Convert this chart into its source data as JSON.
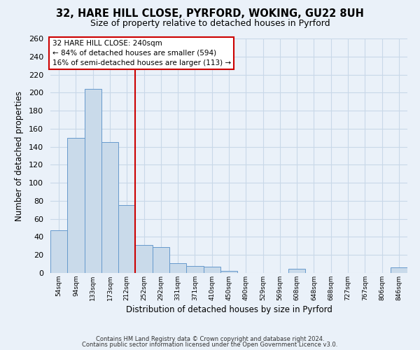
{
  "title1": "32, HARE HILL CLOSE, PYRFORD, WOKING, GU22 8UH",
  "title2": "Size of property relative to detached houses in Pyrford",
  "xlabel": "Distribution of detached houses by size in Pyrford",
  "ylabel": "Number of detached properties",
  "bin_labels": [
    "54sqm",
    "94sqm",
    "133sqm",
    "173sqm",
    "212sqm",
    "252sqm",
    "292sqm",
    "331sqm",
    "371sqm",
    "410sqm",
    "450sqm",
    "490sqm",
    "529sqm",
    "569sqm",
    "608sqm",
    "648sqm",
    "688sqm",
    "727sqm",
    "767sqm",
    "806sqm",
    "846sqm"
  ],
  "bar_values": [
    47,
    150,
    204,
    145,
    75,
    31,
    29,
    11,
    8,
    7,
    2,
    0,
    0,
    0,
    5,
    0,
    0,
    0,
    0,
    0,
    6
  ],
  "bar_color": "#c9daea",
  "bar_edge_color": "#6699cc",
  "vline_x": 5,
  "vline_color": "#cc0000",
  "annotation_line1": "32 HARE HILL CLOSE: 240sqm",
  "annotation_line2": "← 84% of detached houses are smaller (594)",
  "annotation_line3": "16% of semi-detached houses are larger (113) →",
  "ylim": [
    0,
    260
  ],
  "yticks": [
    0,
    20,
    40,
    60,
    80,
    100,
    120,
    140,
    160,
    180,
    200,
    220,
    240,
    260
  ],
  "footer1": "Contains HM Land Registry data © Crown copyright and database right 2024.",
  "footer2": "Contains public sector information licensed under the Open Government Licence v3.0.",
  "bg_color": "#eaf1f9",
  "grid_color": "#c8d8e8",
  "title1_fontsize": 10.5,
  "title2_fontsize": 9
}
